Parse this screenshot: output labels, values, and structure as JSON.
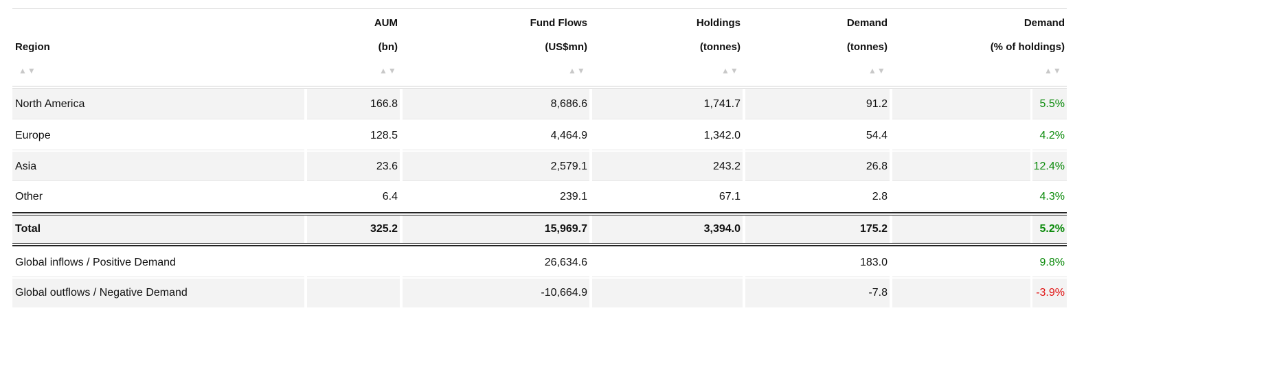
{
  "table": {
    "columns": [
      [
        "Region"
      ],
      [
        "AUM",
        "(bn)"
      ],
      [
        "Fund Flows",
        "(US$mn)"
      ],
      [
        "Holdings",
        "(tonnes)"
      ],
      [
        "Demand",
        "(tonnes)"
      ],
      [
        "Demand",
        "(% of holdings)"
      ]
    ],
    "rows": [
      [
        "North America",
        "166.8",
        "8,686.6",
        "1,741.7",
        "91.2",
        "5.5%"
      ],
      [
        "Europe",
        "128.5",
        "4,464.9",
        "1,342.0",
        "54.4",
        "4.2%"
      ],
      [
        "Asia",
        "23.6",
        "2,579.1",
        "243.2",
        "26.8",
        "12.4%"
      ],
      [
        "Other",
        "6.4",
        "239.1",
        "67.1",
        "2.8",
        "4.3%"
      ],
      [
        "Total",
        "325.2",
        "15,969.7",
        "3,394.0",
        "175.2",
        "5.2%"
      ],
      [
        "Global inflows / Positive Demand",
        "",
        "26,634.6",
        "",
        "183.0",
        "9.8%"
      ],
      [
        "Global outflows / Negative Demand",
        "",
        "-10,664.9",
        "",
        "-7.8",
        "-3.9%"
      ]
    ]
  }
}
